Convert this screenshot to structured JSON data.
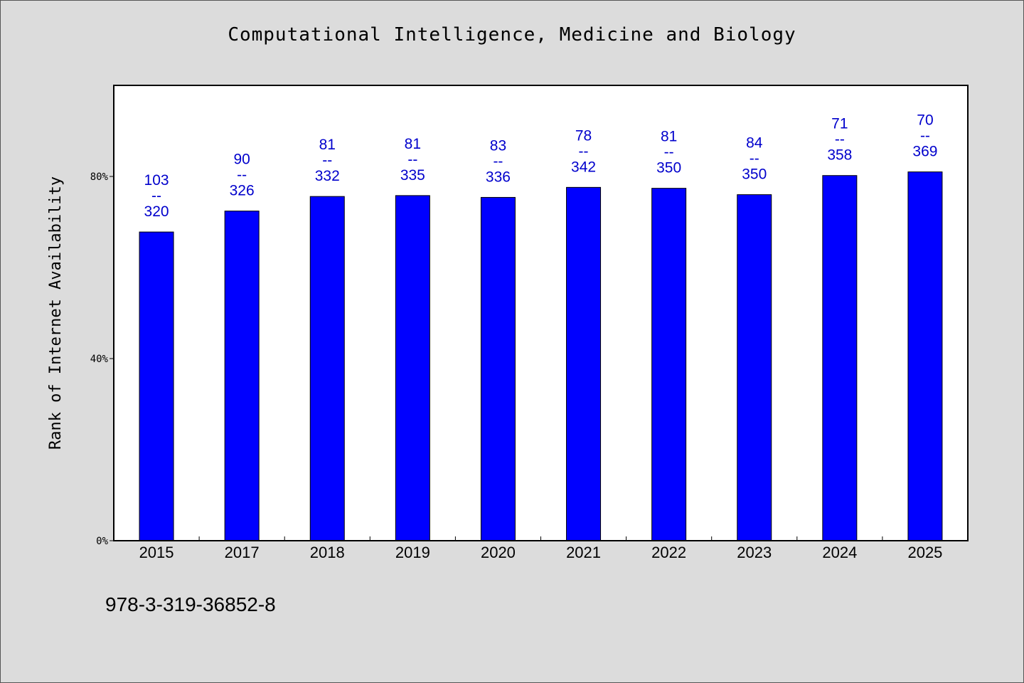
{
  "chart_data": {
    "type": "bar",
    "title": "Computational Intelligence, Medicine and Biology",
    "xlabel": "",
    "ylabel": "Rank of Internet Availability",
    "categories": [
      "2015",
      "2017",
      "2018",
      "2019",
      "2020",
      "2021",
      "2022",
      "2023",
      "2024",
      "2025"
    ],
    "values": [
      67.8,
      72.4,
      75.6,
      75.8,
      75.4,
      77.6,
      77.4,
      76.0,
      80.2,
      81.0
    ],
    "ylim": [
      0,
      100
    ],
    "yticks": [
      0,
      40,
      80
    ],
    "ytick_labels": [
      "0%",
      "40%",
      "80%"
    ],
    "data_labels": [
      {
        "top": "103",
        "sep": "--",
        "bottom": "320"
      },
      {
        "top": "90",
        "sep": "--",
        "bottom": "326"
      },
      {
        "top": "81",
        "sep": "--",
        "bottom": "332"
      },
      {
        "top": "81",
        "sep": "--",
        "bottom": "335"
      },
      {
        "top": "83",
        "sep": "--",
        "bottom": "336"
      },
      {
        "top": "78",
        "sep": "--",
        "bottom": "342"
      },
      {
        "top": "81",
        "sep": "--",
        "bottom": "350"
      },
      {
        "top": "84",
        "sep": "--",
        "bottom": "350"
      },
      {
        "top": "71",
        "sep": "--",
        "bottom": "358"
      },
      {
        "top": "70",
        "sep": "--",
        "bottom": "369"
      }
    ],
    "grid": false,
    "bar_color": "#0000ff",
    "label_color": "#0000cc"
  },
  "footer": {
    "isbn": "978-3-319-36852-8"
  }
}
